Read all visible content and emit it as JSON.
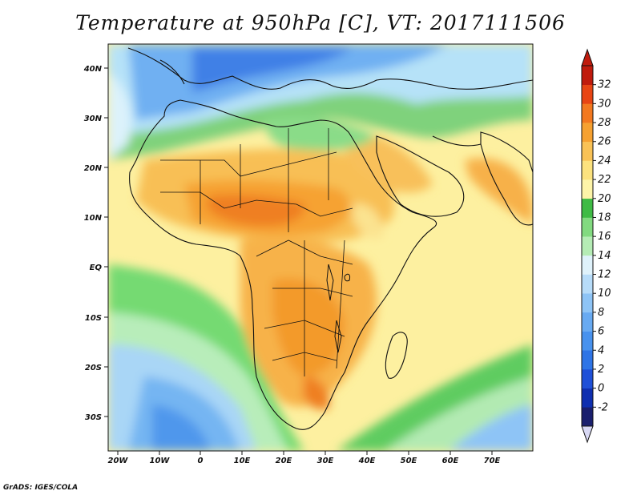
{
  "title": "Temperature at 950hPa [C], VT: 2017111506",
  "credit": "GrADS: IGES/COLA",
  "x_axis_labels": [
    "20W",
    "10W",
    "0",
    "10E",
    "20E",
    "30E",
    "40E",
    "50E",
    "60E",
    "70E"
  ],
  "y_axis_labels": [
    "40N",
    "30N",
    "20N",
    "10N",
    "EQ",
    "10S",
    "20S",
    "30S"
  ],
  "colorbar": {
    "levels": [
      "-2",
      "0",
      "2",
      "4",
      "6",
      "8",
      "10",
      "12",
      "14",
      "16",
      "18",
      "20",
      "22",
      "24",
      "26",
      "28",
      "30",
      "32"
    ],
    "colors": [
      "#1a1f6e",
      "#0f2fb0",
      "#1f50d8",
      "#2e74e6",
      "#4892ee",
      "#68aaf2",
      "#8ec4f6",
      "#b7dcf9",
      "#dff2fb",
      "#b5ecb5",
      "#82da80",
      "#3fbb45",
      "#fdf4a8",
      "#fce27e",
      "#f9c256",
      "#f6a131",
      "#f37920",
      "#e84514",
      "#c01b0d"
    ],
    "under_color": "#d8d8f4",
    "over_color": "#c01b0d"
  }
}
